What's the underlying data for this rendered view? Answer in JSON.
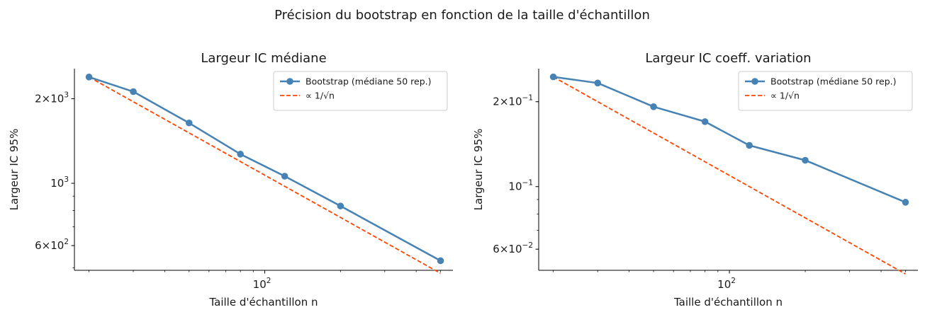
{
  "figure": {
    "title": "Précision du bootstrap en fonction de la taille d'échantillon"
  },
  "chart_data": [
    {
      "type": "line",
      "title": "Largeur IC médiane",
      "xlabel": "Taille d'échantillon n",
      "ylabel": "Largeur IC 95%",
      "xscale": "log",
      "yscale": "log",
      "xlim": [
        17.5,
        560
      ],
      "ylim": [
        490,
        2560
      ],
      "xticks": [
        {
          "value": 100,
          "base": "10",
          "exp": "2"
        }
      ],
      "yticks": [
        {
          "value": 2000,
          "mant": "2",
          "exp": "3"
        },
        {
          "value": 1000,
          "mant": "",
          "exp": "3"
        },
        {
          "value": 600,
          "mant": "6",
          "exp": "2"
        }
      ],
      "series": [
        {
          "name": "Bootstrap (médiane 50 rep.)",
          "color": "#4682b4",
          "style": "solid",
          "marker": "circle",
          "x": [
            20,
            30,
            50,
            80,
            120,
            200,
            500
          ],
          "y": [
            2390,
            2120,
            1640,
            1270,
            1060,
            830,
            530
          ]
        },
        {
          "name": "∝ 1/√n",
          "color": "#ff4500",
          "style": "dashed",
          "marker": "none",
          "x": [
            20,
            500
          ],
          "y": [
            2390,
            478
          ]
        }
      ],
      "legend": "upper right",
      "grid": false
    },
    {
      "type": "line",
      "title": "Largeur IC coeff. variation",
      "xlabel": "Taille d'échantillon n",
      "ylabel": "Largeur IC 95%",
      "xscale": "log",
      "yscale": "log",
      "xlim": [
        17.5,
        560
      ],
      "ylim": [
        0.0505,
        0.262
      ],
      "xticks": [
        {
          "value": 100,
          "base": "10",
          "exp": "2"
        }
      ],
      "yticks": [
        {
          "value": 0.2,
          "mant": "2",
          "exp": "−1"
        },
        {
          "value": 0.1,
          "mant": "",
          "exp": "−1"
        },
        {
          "value": 0.06,
          "mant": "6",
          "exp": "−2"
        }
      ],
      "series": [
        {
          "name": "Bootstrap (médiane 50 rep.)",
          "color": "#4682b4",
          "style": "solid",
          "marker": "circle",
          "x": [
            20,
            30,
            50,
            80,
            120,
            200,
            500
          ],
          "y": [
            0.245,
            0.233,
            0.192,
            0.17,
            0.14,
            0.124,
            0.088
          ]
        },
        {
          "name": "∝ 1/√n",
          "color": "#ff4500",
          "style": "dashed",
          "marker": "none",
          "x": [
            20,
            500
          ],
          "y": [
            0.245,
            0.049
          ]
        }
      ],
      "legend": "upper right",
      "grid": false
    }
  ]
}
